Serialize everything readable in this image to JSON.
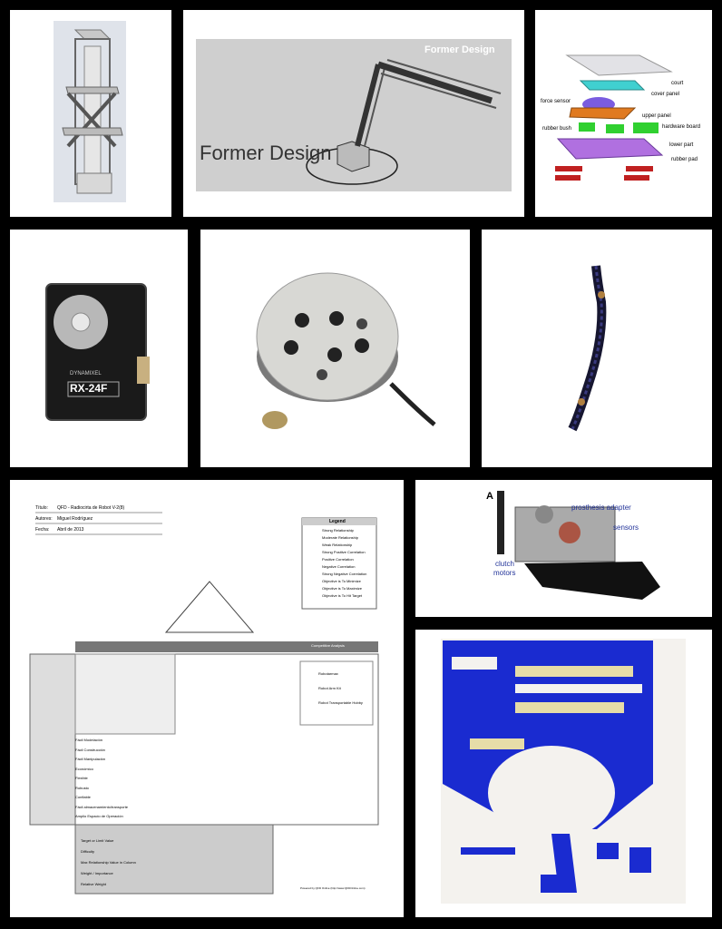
{
  "panels": {
    "former_design": {
      "label_small": "Former Design",
      "label_large": "Former Design"
    },
    "exploded": {
      "labels": [
        "court",
        "cover panel",
        "force sensor",
        "upper panel",
        "hardware board",
        "rubber bush",
        "lower part",
        "rubber pad"
      ]
    },
    "servo": {
      "model": "RX-24F",
      "brand": "DYNAMIXEL"
    },
    "qfd": {
      "header_title_label": "Título:",
      "header_title": "QFD - Radiocirta de Robot V-2(8)",
      "header_author_label": "Autores:",
      "header_author": "Miguel Rodríguez",
      "header_date_label": "Fecha:",
      "header_date": "Abril de 2013",
      "legend_title": "Legend",
      "legend": [
        "Strong Relationship",
        "Moderate Relationship",
        "Weak Relationship",
        "Strong Positive Correlation",
        "Positive Correlation",
        "Negative Correlation",
        "Strong Negative Correlation",
        "Objective is To Minimize",
        "Objective is To Maximize",
        "Objective is To Hit Target"
      ],
      "comp_title": "Competitive Analysis",
      "comp_lines": [
        "Robotarmax",
        "Robot Arm Kit",
        "Robot Transportable Hobby"
      ],
      "rows": [
        "Fácil Modelación",
        "Fácil Construcción",
        "Fácil Manipulación",
        "Económico",
        "Flexible",
        "Robusto",
        "Confiable",
        "Fácil almacenamiento/transporte",
        "Amplio Espacio de Operación"
      ],
      "footer_rows": [
        "Target or Limit Value",
        "Difficulty",
        "Max Relationship Value in Column",
        "Weight / Importance",
        "Relative Weight"
      ],
      "powered": "Powered by QFD Online (http://www.QFDOnline.com)"
    },
    "prosthesis": {
      "letter": "A",
      "label_adapter": "prosthesis adapter",
      "label_sensors": "sensors",
      "label_clutch": "clutch",
      "label_motors": "motors"
    }
  }
}
